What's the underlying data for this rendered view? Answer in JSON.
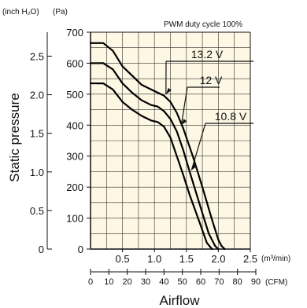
{
  "chart_data": {
    "type": "line",
    "annotation": "PWM duty cycle 100%",
    "xlabel": "Airflow",
    "ylabel": "Static pressure",
    "x_unit_primary": "(m³/min)",
    "x_unit_secondary": "(CFM)",
    "y_unit_primary": "(Pa)",
    "y_unit_secondary": "(inch H₂O)",
    "xlim": [
      0,
      2.5
    ],
    "ylim": [
      0,
      700
    ],
    "x_ticks": [
      {
        "value": 0.5,
        "label": "0.5"
      },
      {
        "value": 1.0,
        "label": "1.0"
      },
      {
        "value": 1.5,
        "label": "1.5"
      },
      {
        "value": 2.0,
        "label": "2.0"
      },
      {
        "value": 2.5,
        "label": "2.5"
      }
    ],
    "y_ticks_pa": [
      {
        "value": 0,
        "label": "0"
      },
      {
        "value": 100,
        "label": "100"
      },
      {
        "value": 200,
        "label": "200"
      },
      {
        "value": 300,
        "label": "300"
      },
      {
        "value": 400,
        "label": "400"
      },
      {
        "value": 500,
        "label": "500"
      },
      {
        "value": 600,
        "label": "600"
      },
      {
        "value": 700,
        "label": "700"
      }
    ],
    "y_ticks_inh2o": [
      {
        "value": 0,
        "label": "0"
      },
      {
        "value": 0.5,
        "label": "0.5"
      },
      {
        "value": 1.0,
        "label": "1.0"
      },
      {
        "value": 1.5,
        "label": "1.5"
      },
      {
        "value": 2.0,
        "label": "2.0"
      },
      {
        "value": 2.5,
        "label": "2.5"
      }
    ],
    "cfm_ticks": [
      {
        "value": 0,
        "label": "0"
      },
      {
        "value": 10,
        "label": "10"
      },
      {
        "value": 20,
        "label": "20"
      },
      {
        "value": 30,
        "label": "30"
      },
      {
        "value": 40,
        "label": "40"
      },
      {
        "value": 50,
        "label": "50"
      },
      {
        "value": 60,
        "label": "60"
      },
      {
        "value": 70,
        "label": "70"
      },
      {
        "value": 80,
        "label": "80"
      },
      {
        "value": 90,
        "label": "90"
      }
    ],
    "grid": true,
    "series": [
      {
        "name": "13.2 V",
        "x": [
          0,
          0.2,
          0.35,
          0.5,
          0.65,
          0.8,
          0.95,
          1.05,
          1.15,
          1.25,
          1.35,
          1.45,
          1.6,
          1.75,
          1.9,
          2.0,
          2.05,
          2.1
        ],
        "y": [
          665,
          665,
          640,
          590,
          560,
          530,
          515,
          505,
          495,
          475,
          440,
          390,
          300,
          200,
          95,
          30,
          10,
          0
        ]
      },
      {
        "name": "12 V",
        "x": [
          0,
          0.2,
          0.35,
          0.5,
          0.65,
          0.8,
          0.95,
          1.05,
          1.15,
          1.25,
          1.35,
          1.45,
          1.55,
          1.7,
          1.85,
          1.95,
          2.0
        ],
        "y": [
          600,
          600,
          580,
          535,
          505,
          480,
          465,
          460,
          445,
          420,
          380,
          320,
          250,
          150,
          50,
          10,
          0
        ]
      },
      {
        "name": "10.8 V",
        "x": [
          0,
          0.2,
          0.35,
          0.5,
          0.65,
          0.8,
          0.95,
          1.05,
          1.15,
          1.25,
          1.35,
          1.45,
          1.55,
          1.7,
          1.82,
          1.9
        ],
        "y": [
          535,
          535,
          515,
          475,
          450,
          430,
          415,
          410,
          395,
          360,
          300,
          240,
          175,
          90,
          20,
          0
        ]
      }
    ],
    "curve_label_positions": [
      "right-of-curve",
      "right-of-curve",
      "right-of-curve"
    ]
  },
  "colors": {
    "plot_background": "#fdf7e3",
    "grid": "#333333",
    "curve": "#000000"
  }
}
